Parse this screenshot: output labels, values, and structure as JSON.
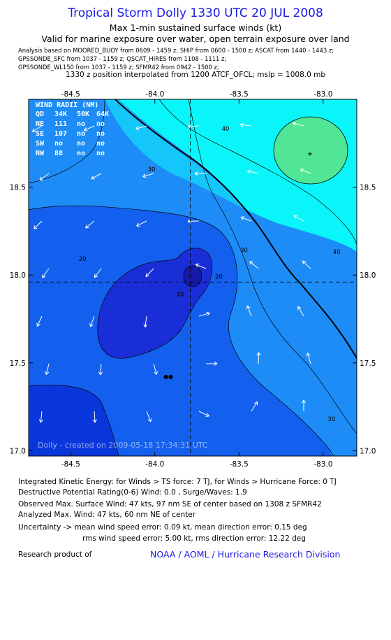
{
  "header": {
    "title": "Tropical Storm Dolly 1330 UTC 20 JUL 2008",
    "subtitle1": "Max 1-min sustained surface winds (kt)",
    "subtitle2": "Valid for marine exposure over water, open terrain exposure over land",
    "analysis1": "Analysis based on  MOORED_BUOY from 0609 - 1459 z;  SHIP from 0600 - 1500 z;  ASCAT from 1440 - 1443 z;",
    "analysis2": "GPSSONDE_SFC from 1037 - 1159 z;  QSCAT_HIRES from 1108 - 1111 z;",
    "analysis3": "GPSSONDE_WL150 from 1037 - 1159 z;  SFMR42 from 0942 - 1500 z;",
    "position_line": "1330 z position interpolated from 1200 ATCF_OFCL; mslp = 1008.0 mb"
  },
  "chart_data": {
    "type": "contour",
    "x_ticks": [
      "-84.5",
      "-84.0",
      "-83.5",
      "-83.0"
    ],
    "x_values": [
      -84.5,
      -84.0,
      -83.5,
      -83.0
    ],
    "y_ticks": [
      "18.5",
      "18.0",
      "17.5",
      "17.0"
    ],
    "y_values": [
      18.5,
      18.0,
      17.5,
      17.0
    ],
    "xlim": [
      -84.75,
      -82.8
    ],
    "ylim": [
      16.97,
      19.0
    ],
    "center": {
      "lon": -83.79,
      "lat": 17.96
    },
    "contour_levels": [
      "10",
      "20",
      "30",
      "40"
    ],
    "contour_label_points": [
      {
        "text": "10",
        "lon": -83.85,
        "lat": 17.88
      },
      {
        "text": "20",
        "lon": -84.43,
        "lat": 18.08
      },
      {
        "text": "20",
        "lon": -83.62,
        "lat": 17.98
      },
      {
        "text": "30",
        "lon": -84.02,
        "lat": 18.59
      },
      {
        "text": "30",
        "lon": -83.47,
        "lat": 18.13
      },
      {
        "text": "30",
        "lon": -82.95,
        "lat": 17.17
      },
      {
        "text": "40",
        "lon": -83.58,
        "lat": 18.82
      },
      {
        "text": "40",
        "lon": -82.92,
        "lat": 18.12
      }
    ],
    "wind_radii": {
      "header": "WIND RADII (NM)",
      "columns": [
        "QD",
        "34K",
        "50K",
        "64K"
      ],
      "rows": [
        [
          "NE",
          "111",
          "no",
          "no"
        ],
        [
          "SE",
          "107",
          "no",
          "no"
        ],
        [
          "SW",
          "no",
          "no",
          "no"
        ],
        [
          "NW",
          "88",
          "no",
          "no"
        ]
      ]
    },
    "credit": "Dolly - created on 2009-05-18 17:34:31 UTC",
    "colors": {
      "band_lt10": "#0a37dc",
      "band_10": "#1a2ed8",
      "band_10_20": "#1460ee",
      "band_20_30": "#1e8cf6",
      "band_30_40": "#14c6fa",
      "band_40_50": "#0af5fa",
      "band_50": "#50e696",
      "dark_core": "#1419a8"
    }
  },
  "footer": {
    "ike": "Integrated Kinetic Energy:  for Winds > TS force: 7 TJ,  for Winds > Hurricane Force: 0 TJ",
    "dpr": "Destructive Potential Rating(0-6)   Wind: 0.0 , Surge/Waves: 1.9",
    "observed": "Observed Max. Surface Wind: 47 kts, 97 nm SE of center based on 1308 z SFMR42",
    "analyzed": "Analyzed Max. Wind: 47 kts, 60 nm NE of center",
    "uncertainty1": "Uncertainty -> mean wind speed error: 0.09 kt,   mean direction error: 0.15 deg",
    "uncertainty2": "rms wind speed error: 5.00 kt,   rms direction error: 12.22 deg",
    "research": "Research product of",
    "noaa": "NOAA / AOML / Hurricane Research Division"
  }
}
